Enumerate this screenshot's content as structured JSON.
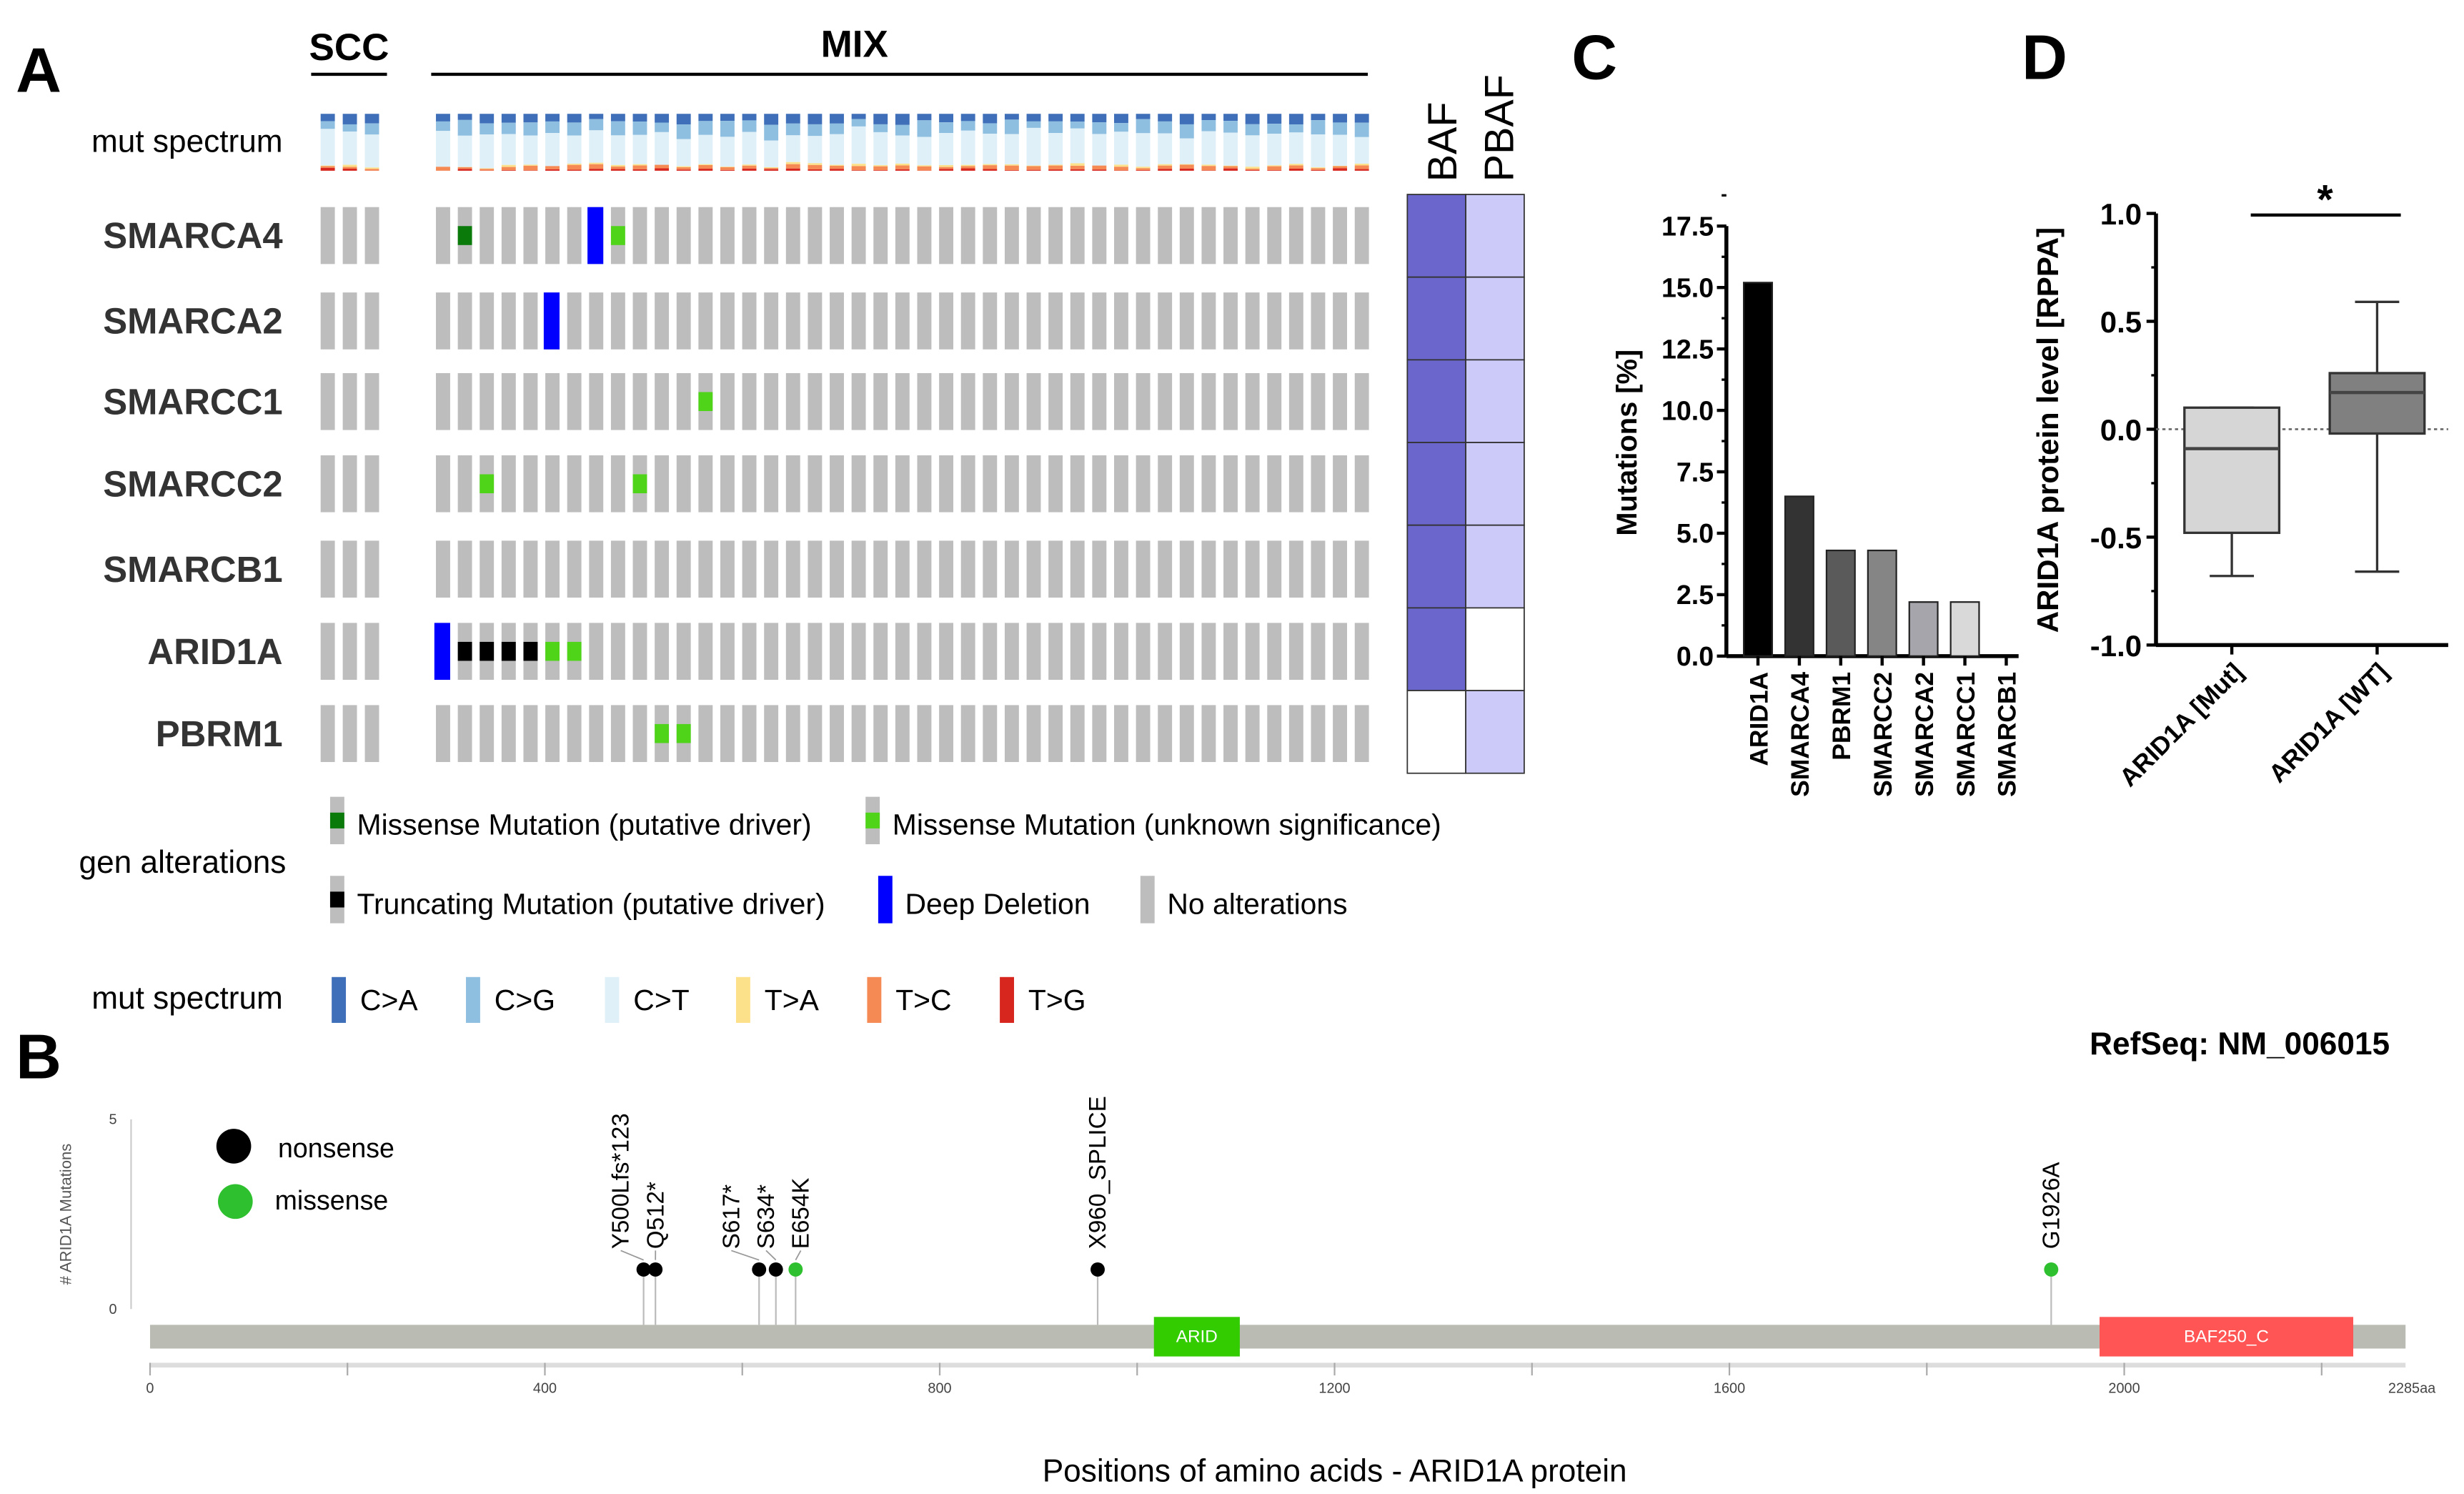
{
  "panel_labels": {
    "a": "A",
    "b": "B",
    "c": "C",
    "d": "D"
  },
  "oncoprint": {
    "group_scc": "SCC",
    "group_mix": "MIX",
    "scc_count": 3,
    "mix_count": 43,
    "mut_spectrum_label": "mut spectrum",
    "complex_headers": [
      "BAF",
      "PBAF"
    ],
    "genes": [
      {
        "name": "SMARCA4",
        "baf": true,
        "pbaf": true,
        "alts": [
          {
            "col": 1,
            "type": "missense_driver"
          },
          {
            "col": 7,
            "type": "deep_deletion"
          },
          {
            "col": 8,
            "type": "missense_unknown"
          }
        ]
      },
      {
        "name": "SMARCA2",
        "baf": true,
        "pbaf": true,
        "alts": [
          {
            "col": 5,
            "type": "deep_deletion"
          }
        ]
      },
      {
        "name": "SMARCC1",
        "baf": true,
        "pbaf": true,
        "alts": [
          {
            "col": 12,
            "type": "missense_unknown"
          }
        ]
      },
      {
        "name": "SMARCC2",
        "baf": true,
        "pbaf": true,
        "alts": [
          {
            "col": 2,
            "type": "missense_unknown"
          },
          {
            "col": 9,
            "type": "missense_unknown"
          }
        ]
      },
      {
        "name": "SMARCB1",
        "baf": true,
        "pbaf": true,
        "alts": []
      },
      {
        "name": "ARID1A",
        "baf": true,
        "pbaf": false,
        "alts": [
          {
            "col": 0,
            "type": "deep_deletion"
          },
          {
            "col": 1,
            "type": "truncating"
          },
          {
            "col": 2,
            "type": "truncating"
          },
          {
            "col": 3,
            "type": "truncating"
          },
          {
            "col": 4,
            "type": "truncating"
          },
          {
            "col": 5,
            "type": "missense_unknown"
          },
          {
            "col": 6,
            "type": "missense_unknown"
          }
        ]
      },
      {
        "name": "PBRM1",
        "baf": false,
        "pbaf": true,
        "alts": [
          {
            "col": 10,
            "type": "missense_unknown"
          },
          {
            "col": 11,
            "type": "missense_unknown"
          }
        ]
      }
    ],
    "gen_alterations_label": "gen alterations",
    "alteration_legend": [
      {
        "type": "missense_driver",
        "label": "Missense Mutation (putative driver)"
      },
      {
        "type": "missense_unknown",
        "label": "Missense Mutation (unknown significance)"
      },
      {
        "type": "truncating",
        "label": "Truncating Mutation (putative driver)"
      },
      {
        "type": "deep_deletion",
        "label": "Deep Deletion"
      },
      {
        "type": "none",
        "label": "No alterations"
      }
    ],
    "spectrum_legend": [
      {
        "label": "C>A",
        "color": "#3e6fb8"
      },
      {
        "label": "C>G",
        "color": "#8fbfe0"
      },
      {
        "label": "C>T",
        "color": "#dff0f8"
      },
      {
        "label": "T>A",
        "color": "#fce08a"
      },
      {
        "label": "T>C",
        "color": "#f58a55"
      },
      {
        "label": "T>G",
        "color": "#d7261e"
      }
    ],
    "colors": {
      "missense_driver": "#0a7a0a",
      "missense_unknown": "#4fd41a",
      "truncating": "#000000",
      "deep_deletion": "#0000ff",
      "none": "#bdbdbd",
      "baf": "#6a66cc",
      "pbaf": "#cccaf8"
    }
  },
  "chart_data": [
    {
      "type": "bar",
      "title": "",
      "ylabel": "Mutations [%]",
      "categories": [
        "ARID1A",
        "SMARCA4",
        "PBRM1",
        "SMARCC2",
        "SMARCA2",
        "SMARCC1",
        "SMARCB1"
      ],
      "values": [
        15.2,
        6.5,
        4.3,
        4.3,
        2.2,
        2.2,
        0
      ],
      "colors": [
        "#000000",
        "#333333",
        "#5a5a5a",
        "#858585",
        "#a5a5ab",
        "#d9d9d9",
        "#ffffff"
      ],
      "ylim": [
        0,
        17.5
      ],
      "yticks": [
        "0.0",
        "2.5",
        "5.0",
        "7.5",
        "10.0",
        "12.5",
        "15.0",
        "17.5"
      ]
    },
    {
      "type": "box",
      "ylabel": "ARID1A protein level [RPPA]",
      "categories": [
        "ARID1A [Mut]",
        "ARID1A [WT]"
      ],
      "boxes": [
        {
          "min": -0.68,
          "q1": -0.48,
          "median": -0.09,
          "q3": 0.1,
          "max": 0.1,
          "color": "#d6d6d6"
        },
        {
          "min": -0.66,
          "q1": -0.02,
          "median": 0.17,
          "q3": 0.26,
          "max": 0.59,
          "color": "#808080"
        }
      ],
      "ylim": [
        -1.0,
        1.0
      ],
      "yticks": [
        "-1.0",
        "-0.5",
        "0.0",
        "0.5",
        "1.0"
      ],
      "significance": "*"
    },
    {
      "type": "lollipop",
      "refseq": "RefSeq: NM_006015",
      "ylabel": "# ARID1A Mutations",
      "xlabel": "Positions of amino acids - ARID1A protein",
      "protein_length": 2285,
      "xticks": [
        "0",
        "400",
        "800",
        "1200",
        "1600",
        "2000",
        "2285aa"
      ],
      "yticks": [
        "0",
        "5"
      ],
      "legend": [
        {
          "label": "nonsense",
          "color": "#000000"
        },
        {
          "label": "missense",
          "color": "#2ec02e"
        }
      ],
      "mutations": [
        {
          "pos": 500,
          "type": "nonsense",
          "count": 1,
          "label": "Y500Lfs*123"
        },
        {
          "pos": 512,
          "type": "nonsense",
          "count": 1,
          "label": "Q512*"
        },
        {
          "pos": 617,
          "type": "nonsense",
          "count": 1,
          "label": "S617*"
        },
        {
          "pos": 634,
          "type": "nonsense",
          "count": 1,
          "label": "S634*"
        },
        {
          "pos": 654,
          "type": "missense",
          "count": 1,
          "label": "E654K"
        },
        {
          "pos": 960,
          "type": "nonsense",
          "count": 1,
          "label": "X960_SPLICE"
        },
        {
          "pos": 1926,
          "type": "missense",
          "count": 1,
          "label": "G1926A"
        }
      ],
      "domains": [
        {
          "name": "ARID",
          "start": 1017,
          "end": 1104,
          "color": "#33cc00"
        },
        {
          "name": "BAF250_C",
          "start": 1975,
          "end": 2232,
          "color": "#ff5555"
        }
      ]
    }
  ]
}
